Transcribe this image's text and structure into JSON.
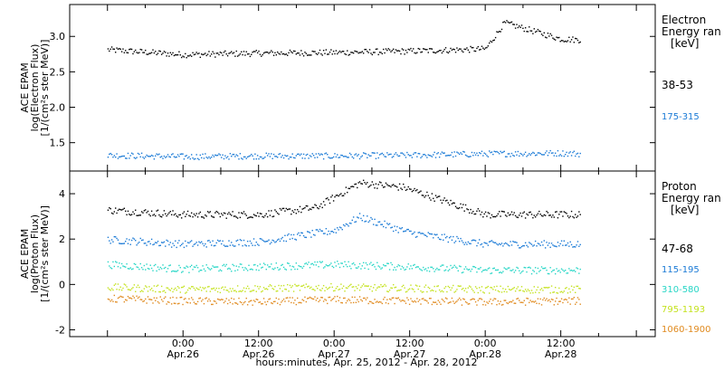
{
  "chart_data": [
    {
      "type": "scatter",
      "panel": "electron",
      "ylabel_lines": [
        "ACE EPAM",
        "log(Electron Flux)",
        "[1/(cm²s ster MeV)]"
      ],
      "ylim": [
        1.1,
        3.45
      ],
      "yticks": [
        "1.5",
        "2.0",
        "2.5",
        "3.0"
      ],
      "ytick_values": [
        1.5,
        2.0,
        2.5,
        3.0
      ],
      "legend": {
        "title_lines": [
          "Electron",
          "Energy ran",
          "[keV]"
        ],
        "placement": "right"
      },
      "series": [
        {
          "name": "38-53",
          "color": "#000000",
          "x": [
            "Apr.25 12:00",
            "Apr.26 00:00",
            "Apr.26 12:00",
            "Apr.27 00:00",
            "Apr.27 12:00",
            "Apr.28 00:00",
            "Apr.28 03:00",
            "Apr.28 12:00",
            "Apr.28 15:00"
          ],
          "y": [
            2.82,
            2.75,
            2.77,
            2.78,
            2.8,
            2.83,
            3.2,
            2.97,
            2.96
          ]
        },
        {
          "name": "175-315",
          "color": "#1a7ad6",
          "x": [
            "Apr.25 12:00",
            "Apr.26 00:00",
            "Apr.26 12:00",
            "Apr.27 00:00",
            "Apr.27 12:00",
            "Apr.28 00:00",
            "Apr.28 12:00",
            "Apr.28 15:00"
          ],
          "y": [
            1.33,
            1.31,
            1.32,
            1.32,
            1.33,
            1.35,
            1.36,
            1.35
          ]
        }
      ]
    },
    {
      "type": "scatter",
      "panel": "proton",
      "ylabel_lines": [
        "ACE EPAM",
        "log(Proton Flux)",
        "[1/(cm²s ster MeV)]"
      ],
      "ylim": [
        -2.3,
        5.0
      ],
      "yticks": [
        "-2",
        "0",
        "2",
        "4"
      ],
      "ytick_values": [
        -2,
        0,
        2,
        4
      ],
      "legend": {
        "title_lines": [
          "Proton",
          "Energy ran",
          "[keV]"
        ],
        "placement": "right"
      },
      "series": [
        {
          "name": "47-68",
          "color": "#000000",
          "x": [
            "Apr.25 12:00",
            "Apr.26 00:00",
            "Apr.26 12:00",
            "Apr.26 21:00",
            "Apr.27 04:00",
            "Apr.27 11:00",
            "Apr.28 00:00",
            "Apr.28 15:00"
          ],
          "y": [
            3.3,
            3.1,
            3.1,
            3.4,
            4.5,
            4.3,
            3.1,
            3.1
          ]
        },
        {
          "name": "115-195",
          "color": "#1a7ad6",
          "x": [
            "Apr.25 12:00",
            "Apr.26 00:00",
            "Apr.26 12:00",
            "Apr.27 00:00",
            "Apr.27 04:00",
            "Apr.27 12:00",
            "Apr.28 00:00",
            "Apr.28 15:00"
          ],
          "y": [
            2.0,
            1.8,
            1.9,
            2.4,
            3.0,
            2.3,
            1.8,
            1.8
          ]
        },
        {
          "name": "310-580",
          "color": "#27d6c6",
          "x": [
            "Apr.25 12:00",
            "Apr.26 00:00",
            "Apr.26 12:00",
            "Apr.27 00:00",
            "Apr.27 12:00",
            "Apr.28 00:00",
            "Apr.28 15:00"
          ],
          "y": [
            0.9,
            0.7,
            0.8,
            0.9,
            0.8,
            0.65,
            0.65
          ]
        },
        {
          "name": "795-1193",
          "color": "#c4e21e",
          "x": [
            "Apr.25 12:00",
            "Apr.26 00:00",
            "Apr.26 12:00",
            "Apr.27 00:00",
            "Apr.27 12:00",
            "Apr.28 00:00",
            "Apr.28 15:00"
          ],
          "y": [
            -0.1,
            -0.2,
            -0.15,
            -0.1,
            -0.15,
            -0.2,
            -0.2
          ]
        },
        {
          "name": "1060-1900",
          "color": "#e08a1e",
          "x": [
            "Apr.25 12:00",
            "Apr.26 00:00",
            "Apr.26 12:00",
            "Apr.27 00:00",
            "Apr.27 12:00",
            "Apr.28 00:00",
            "Apr.28 15:00"
          ],
          "y": [
            -0.6,
            -0.7,
            -0.75,
            -0.65,
            -0.7,
            -0.75,
            -0.7
          ]
        }
      ]
    }
  ],
  "x_axis": {
    "ticks": [
      {
        "time": "0:00",
        "date": "Apr.26"
      },
      {
        "time": "12:00",
        "date": "Apr.26"
      },
      {
        "time": "0:00",
        "date": "Apr.27"
      },
      {
        "time": "12:00",
        "date": "Apr.27"
      },
      {
        "time": "0:00",
        "date": "Apr.28"
      },
      {
        "time": "12:00",
        "date": "Apr.28"
      }
    ],
    "label": "hours:minutes, Apr. 25, 2012 - Apr. 28, 2012"
  }
}
